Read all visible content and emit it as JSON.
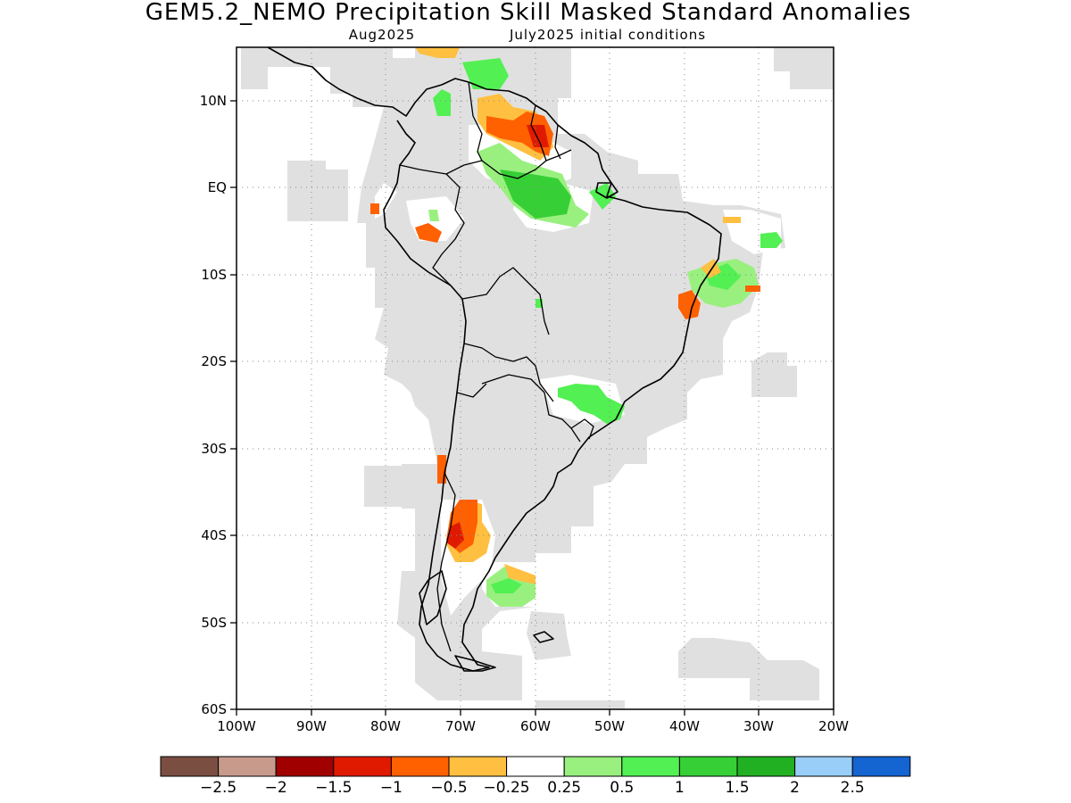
{
  "title": "GEM5.2_NEMO Precipitation Skill Masked Standard Anomalies",
  "subtitle_month": "Aug2025",
  "subtitle_ic": "July2025 initial conditions",
  "lat_ticks": [
    "10N",
    "EQ",
    "10S",
    "20S",
    "30S",
    "40S",
    "50S",
    "60S"
  ],
  "lon_ticks": [
    "100W",
    "90W",
    "80W",
    "70W",
    "60W",
    "50W",
    "40W",
    "30W",
    "20W"
  ],
  "colorbar": {
    "labels": [
      "−2.5",
      "−2",
      "−1.5",
      "−1",
      "−0.5",
      "−0.25",
      "0.25",
      "0.5",
      "1",
      "1.5",
      "2",
      "2.5"
    ],
    "colors": [
      "#7b4e42",
      "#c79a8c",
      "#a00000",
      "#e01a00",
      "#ff6000",
      "#ffbf40",
      "#ffffff",
      "#99f07f",
      "#52f052",
      "#36cf36",
      "#21b021",
      "#99cef9",
      "#1464d2"
    ]
  },
  "colors": {
    "masked_gray": "#e0e0e0",
    "dry_strong": "#e01a00",
    "dry_mid": "#ff6000",
    "dry_weak": "#ffbf40",
    "wet_weak": "#99f07f",
    "wet_mid": "#52f052",
    "wet_strong": "#36cf36"
  }
}
